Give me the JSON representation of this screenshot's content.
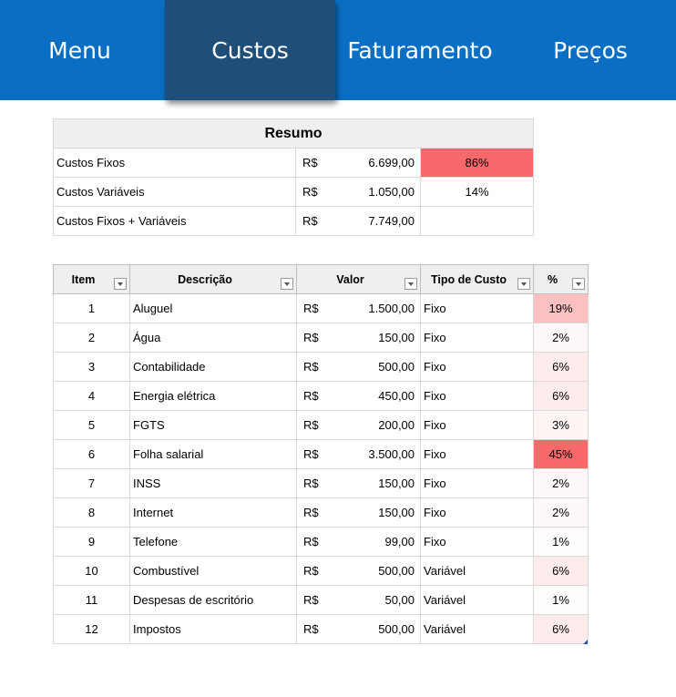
{
  "nav": {
    "items": [
      {
        "label": "Menu"
      },
      {
        "label": "Custos"
      },
      {
        "label": "Faturamento"
      },
      {
        "label": "Preços"
      }
    ],
    "active": "Custos"
  },
  "summary": {
    "title": "Resumo",
    "rows": [
      {
        "label": "Custos Fixos",
        "currency": "R$",
        "value": "6.699,00",
        "pct": "86%"
      },
      {
        "label": "Custos Variáveis",
        "currency": "R$",
        "value": "1.050,00",
        "pct": "14%"
      },
      {
        "label": "Custos Fixos + Variáveis",
        "currency": "R$",
        "value": "7.749,00",
        "pct": ""
      }
    ]
  },
  "table": {
    "headers": {
      "item": "Item",
      "descricao": "Descrição",
      "valor": "Valor",
      "tipo": "Tipo de Custo",
      "pct": "%"
    },
    "rows": [
      {
        "item": "1",
        "descricao": "Aluguel",
        "currency": "R$",
        "valor": "1.500,00",
        "tipo": "Fixo",
        "pct": "19%"
      },
      {
        "item": "2",
        "descricao": "Água",
        "currency": "R$",
        "valor": "150,00",
        "tipo": "Fixo",
        "pct": "2%"
      },
      {
        "item": "3",
        "descricao": "Contabilidade",
        "currency": "R$",
        "valor": "500,00",
        "tipo": "Fixo",
        "pct": "6%"
      },
      {
        "item": "4",
        "descricao": "Energia elétrica",
        "currency": "R$",
        "valor": "450,00",
        "tipo": "Fixo",
        "pct": "6%"
      },
      {
        "item": "5",
        "descricao": "FGTS",
        "currency": "R$",
        "valor": "200,00",
        "tipo": "Fixo",
        "pct": "3%"
      },
      {
        "item": "6",
        "descricao": "Folha salarial",
        "currency": "R$",
        "valor": "3.500,00",
        "tipo": "Fixo",
        "pct": "45%"
      },
      {
        "item": "7",
        "descricao": "INSS",
        "currency": "R$",
        "valor": "150,00",
        "tipo": "Fixo",
        "pct": "2%"
      },
      {
        "item": "8",
        "descricao": "Internet",
        "currency": "R$",
        "valor": "150,00",
        "tipo": "Fixo",
        "pct": "2%"
      },
      {
        "item": "9",
        "descricao": "Telefone",
        "currency": "R$",
        "valor": "99,00",
        "tipo": "Fixo",
        "pct": "1%"
      },
      {
        "item": "10",
        "descricao": "Combustível",
        "currency": "R$",
        "valor": "500,00",
        "tipo": "Variável",
        "pct": "6%"
      },
      {
        "item": "11",
        "descricao": "Despesas de escritório",
        "currency": "R$",
        "valor": "50,00",
        "tipo": "Variável",
        "pct": "1%"
      },
      {
        "item": "12",
        "descricao": "Impostos",
        "currency": "R$",
        "valor": "500,00",
        "tipo": "Variável",
        "pct": "6%"
      }
    ]
  },
  "colors": {
    "topbar": "#0a6fc2",
    "active_tab": "#1f4e79",
    "heat_high": "#f8696b",
    "heat_low": "#ffffff"
  }
}
